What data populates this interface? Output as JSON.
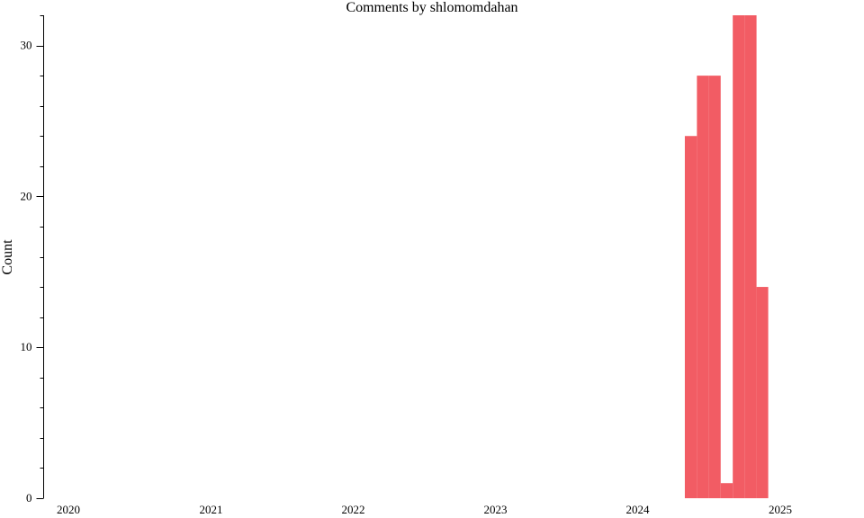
{
  "chart_data": {
    "type": "bar",
    "title": "Comments by shlomomdahan",
    "xlabel": "",
    "ylabel": "Count",
    "x_ticks": [
      "2020",
      "2021",
      "2022",
      "2023",
      "2024",
      "2025"
    ],
    "y_ticks": [
      "0",
      "10",
      "20",
      "30"
    ],
    "ylim": [
      0,
      32
    ],
    "xlim": [
      "2019-12-01",
      "2025-07-01"
    ],
    "grid": false,
    "bar_color": "#f25c64",
    "series": [
      {
        "bars": [
          {
            "start": "2024-05-01",
            "end": "2024-06-01",
            "value": 24
          },
          {
            "start": "2024-06-01",
            "end": "2024-07-01",
            "value": 28
          },
          {
            "start": "2024-07-01",
            "end": "2024-08-01",
            "value": 28
          },
          {
            "start": "2024-08-01",
            "end": "2024-09-01",
            "value": 1
          },
          {
            "start": "2024-09-01",
            "end": "2024-10-01",
            "value": 32
          },
          {
            "start": "2024-10-01",
            "end": "2024-11-01",
            "value": 32
          },
          {
            "start": "2024-11-01",
            "end": "2024-12-01",
            "value": 14
          }
        ]
      }
    ]
  }
}
